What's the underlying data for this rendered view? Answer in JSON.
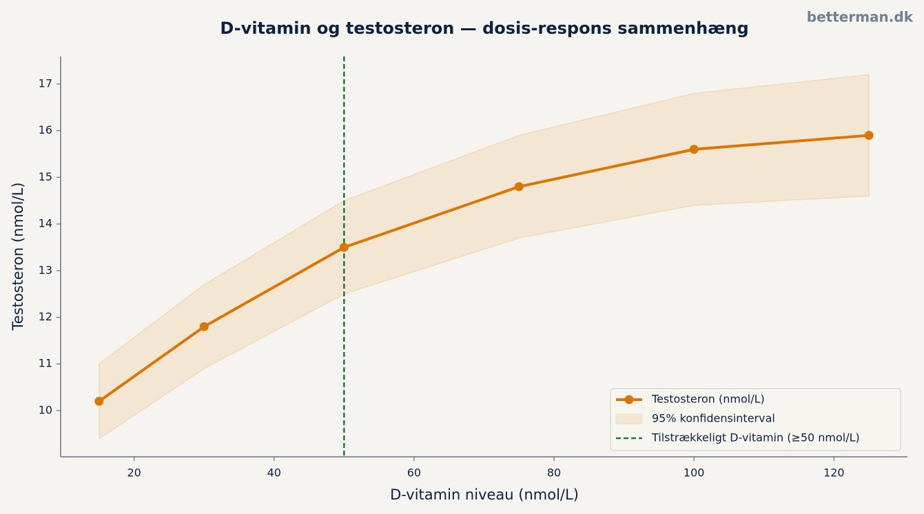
{
  "chart_data": {
    "type": "line",
    "title": "D-vitamin og testosteron — dosis-respons sammenhæng",
    "watermark": "betterman.dk",
    "x_label": "D-vitamin niveau (nmol/L)",
    "y_label": "Testosteron (nmol/L)",
    "x": [
      15,
      30,
      50,
      75,
      100,
      125
    ],
    "series": [
      {
        "name": "Testosteron (nmol/L)",
        "color": "#d97706",
        "values": [
          10.2,
          11.8,
          13.5,
          14.8,
          15.6,
          15.9
        ]
      }
    ],
    "band": {
      "name": "95% konfidensinterval",
      "color": "#f0c78e",
      "lower": [
        9.4,
        10.9,
        12.5,
        13.7,
        14.4,
        14.6
      ],
      "upper": [
        11.0,
        12.7,
        14.5,
        15.9,
        16.8,
        17.2
      ]
    },
    "reference_line": {
      "name": "Tilstrækkeligt D-vitamin (≥50 nmol/L)",
      "x": 50,
      "color": "#1a7a3a"
    },
    "xlim": [
      9.5,
      130.5
    ],
    "ylim": [
      9.01,
      17.59
    ],
    "xticks": [
      20,
      40,
      60,
      80,
      100,
      120
    ],
    "yticks": [
      10,
      11,
      12,
      13,
      14,
      15,
      16,
      17
    ],
    "legend": "lower right"
  }
}
